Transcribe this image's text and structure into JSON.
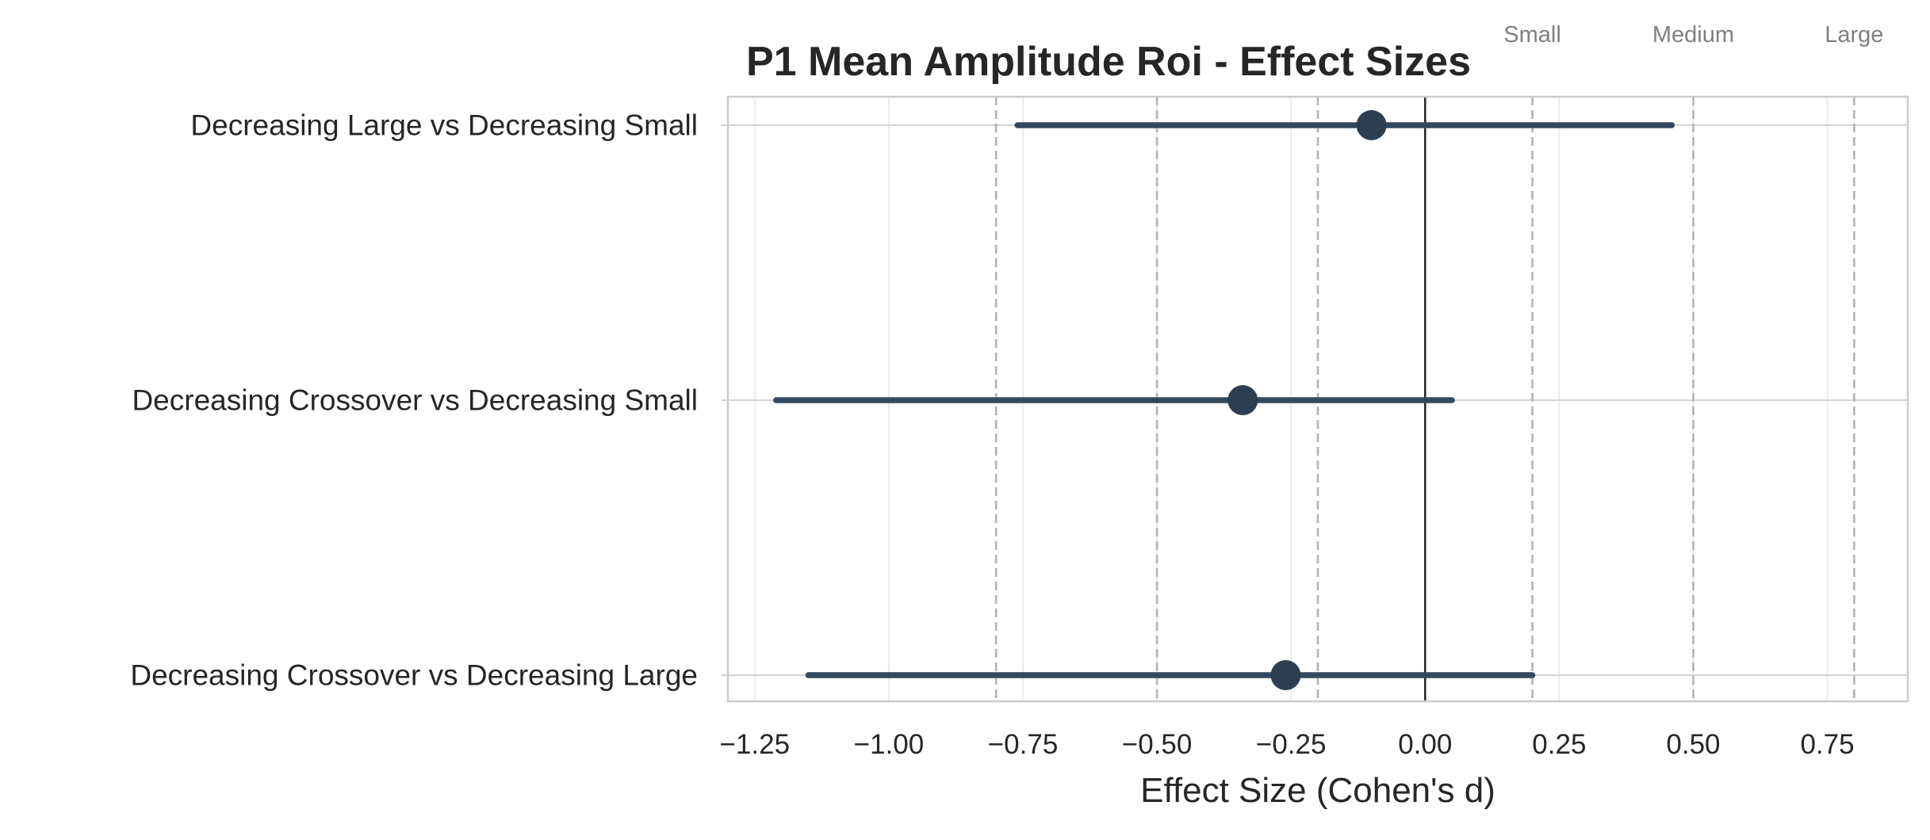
{
  "chart_data": {
    "type": "forest",
    "title": "P1 Mean Amplitude Roi - Effect Sizes",
    "xlabel": "Effect Size (Cohen's d)",
    "ylabel": "",
    "xlim": [
      -1.3,
      0.9
    ],
    "xticks": [
      -1.25,
      -1.0,
      -0.75,
      -0.5,
      -0.25,
      0.0,
      0.25,
      0.5,
      0.75
    ],
    "xtick_labels": [
      "−1.25",
      "−1.00",
      "−0.75",
      "−0.50",
      "−0.25",
      "0.00",
      "0.25",
      "0.50",
      "0.75"
    ],
    "grid": true,
    "zero_line": 0.0,
    "threshold_lines": [
      -0.8,
      -0.5,
      -0.2,
      0.2,
      0.5,
      0.8
    ],
    "threshold_labels": [
      {
        "label": "Small",
        "x": 0.2
      },
      {
        "label": "Medium",
        "x": 0.5
      },
      {
        "label": "Large",
        "x": 0.8
      }
    ],
    "comparisons": [
      {
        "label": "Decreasing Large vs Decreasing Small",
        "d": -0.1,
        "ci": [
          -0.76,
          0.46
        ]
      },
      {
        "label": "Decreasing Crossover vs Decreasing Small",
        "d": -0.34,
        "ci": [
          -1.21,
          0.05
        ]
      },
      {
        "label": "Decreasing Crossover vs Decreasing Large",
        "d": -0.26,
        "ci": [
          -1.15,
          0.2
        ]
      }
    ],
    "colors": {
      "point": "#2c3e50",
      "ci_line": "#34495e",
      "zero_line": "#2b2b2b",
      "threshold_line": "#b3b3b3",
      "grid": "#ebebeb",
      "frame": "#cccccc",
      "text": "#262626",
      "threshold_text": "#808080"
    }
  }
}
